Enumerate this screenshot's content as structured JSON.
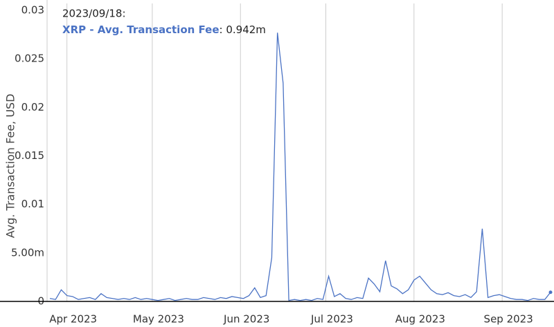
{
  "chart_data": {
    "type": "line",
    "y_label": "Avg. Transaction Fee, USD",
    "x": [
      "2023-03-26",
      "2023-03-28",
      "2023-03-30",
      "2023-04-01",
      "2023-04-03",
      "2023-04-05",
      "2023-04-07",
      "2023-04-09",
      "2023-04-11",
      "2023-04-13",
      "2023-04-15",
      "2023-04-17",
      "2023-04-19",
      "2023-04-21",
      "2023-04-23",
      "2023-04-25",
      "2023-04-27",
      "2023-04-29",
      "2023-05-01",
      "2023-05-03",
      "2023-05-05",
      "2023-05-07",
      "2023-05-09",
      "2023-05-11",
      "2023-05-13",
      "2023-05-15",
      "2023-05-17",
      "2023-05-19",
      "2023-05-21",
      "2023-05-23",
      "2023-05-25",
      "2023-05-27",
      "2023-05-29",
      "2023-05-31",
      "2023-06-02",
      "2023-06-04",
      "2023-06-06",
      "2023-06-08",
      "2023-06-10",
      "2023-06-12",
      "2023-06-14",
      "2023-06-16",
      "2023-06-18",
      "2023-06-20",
      "2023-06-22",
      "2023-06-24",
      "2023-06-26",
      "2023-06-28",
      "2023-06-30",
      "2023-07-02",
      "2023-07-04",
      "2023-07-06",
      "2023-07-08",
      "2023-07-10",
      "2023-07-12",
      "2023-07-14",
      "2023-07-16",
      "2023-07-18",
      "2023-07-20",
      "2023-07-22",
      "2023-07-24",
      "2023-07-26",
      "2023-07-28",
      "2023-07-30",
      "2023-08-01",
      "2023-08-03",
      "2023-08-05",
      "2023-08-07",
      "2023-08-09",
      "2023-08-11",
      "2023-08-13",
      "2023-08-15",
      "2023-08-17",
      "2023-08-19",
      "2023-08-21",
      "2023-08-23",
      "2023-08-25",
      "2023-08-27",
      "2023-08-29",
      "2023-08-31",
      "2023-09-02",
      "2023-09-04",
      "2023-09-06",
      "2023-09-08",
      "2023-09-10",
      "2023-09-12",
      "2023-09-14",
      "2023-09-16",
      "2023-09-18"
    ],
    "series": [
      {
        "name": "XRP - Avg. Transaction Fee",
        "color": "#4a72c4",
        "values": [
          0.0003,
          0.0002,
          0.0012,
          0.0006,
          0.0005,
          0.0002,
          0.0003,
          0.0004,
          0.0002,
          0.0008,
          0.0004,
          0.0003,
          0.0002,
          0.0003,
          0.0002,
          0.0004,
          0.0002,
          0.0003,
          0.0002,
          0.0001,
          0.0002,
          0.0003,
          0.0001,
          0.0002,
          0.0003,
          0.0002,
          0.0002,
          0.0004,
          0.0003,
          0.0002,
          0.0004,
          0.0003,
          0.0005,
          0.0004,
          0.0003,
          0.0006,
          0.0014,
          0.0004,
          0.0006,
          0.0045,
          0.0277,
          0.0225,
          0.0001,
          0.0002,
          0.0001,
          0.0002,
          0.0001,
          0.0003,
          0.0002,
          0.0026,
          0.0005,
          0.0008,
          0.0003,
          0.0002,
          0.0004,
          0.0003,
          0.0024,
          0.0018,
          0.001,
          0.0042,
          0.0016,
          0.0013,
          0.0008,
          0.0012,
          0.0022,
          0.0026,
          0.0019,
          0.0012,
          0.0008,
          0.0007,
          0.0009,
          0.0006,
          0.0005,
          0.0007,
          0.0004,
          0.001,
          0.0075,
          0.0004,
          0.0006,
          0.0007,
          0.0005,
          0.0003,
          0.0002,
          0.0002,
          0.0001,
          0.0003,
          0.0002,
          0.0002,
          0.000942
        ]
      }
    ],
    "xlim": [
      "2023-03-26",
      "2023-09-18"
    ],
    "xticks": [
      {
        "value": "2023-04-01",
        "label": "Apr 2023"
      },
      {
        "value": "2023-05-01",
        "label": "May 2023"
      },
      {
        "value": "2023-06-01",
        "label": "Jun 2023"
      },
      {
        "value": "2023-07-01",
        "label": "Jul 2023"
      },
      {
        "value": "2023-08-01",
        "label": "Aug 2023"
      },
      {
        "value": "2023-09-01",
        "label": "Sep 2023"
      }
    ],
    "ylim": [
      0,
      0.03
    ],
    "yticks": [
      0,
      {
        "value": 0.005,
        "label": "5.00m"
      },
      0.01,
      0.015,
      0.02,
      0.025,
      0.03
    ],
    "grid": "x",
    "tooltip": {
      "date": "2023/09/18:",
      "value_text": ": 0.942m"
    }
  }
}
